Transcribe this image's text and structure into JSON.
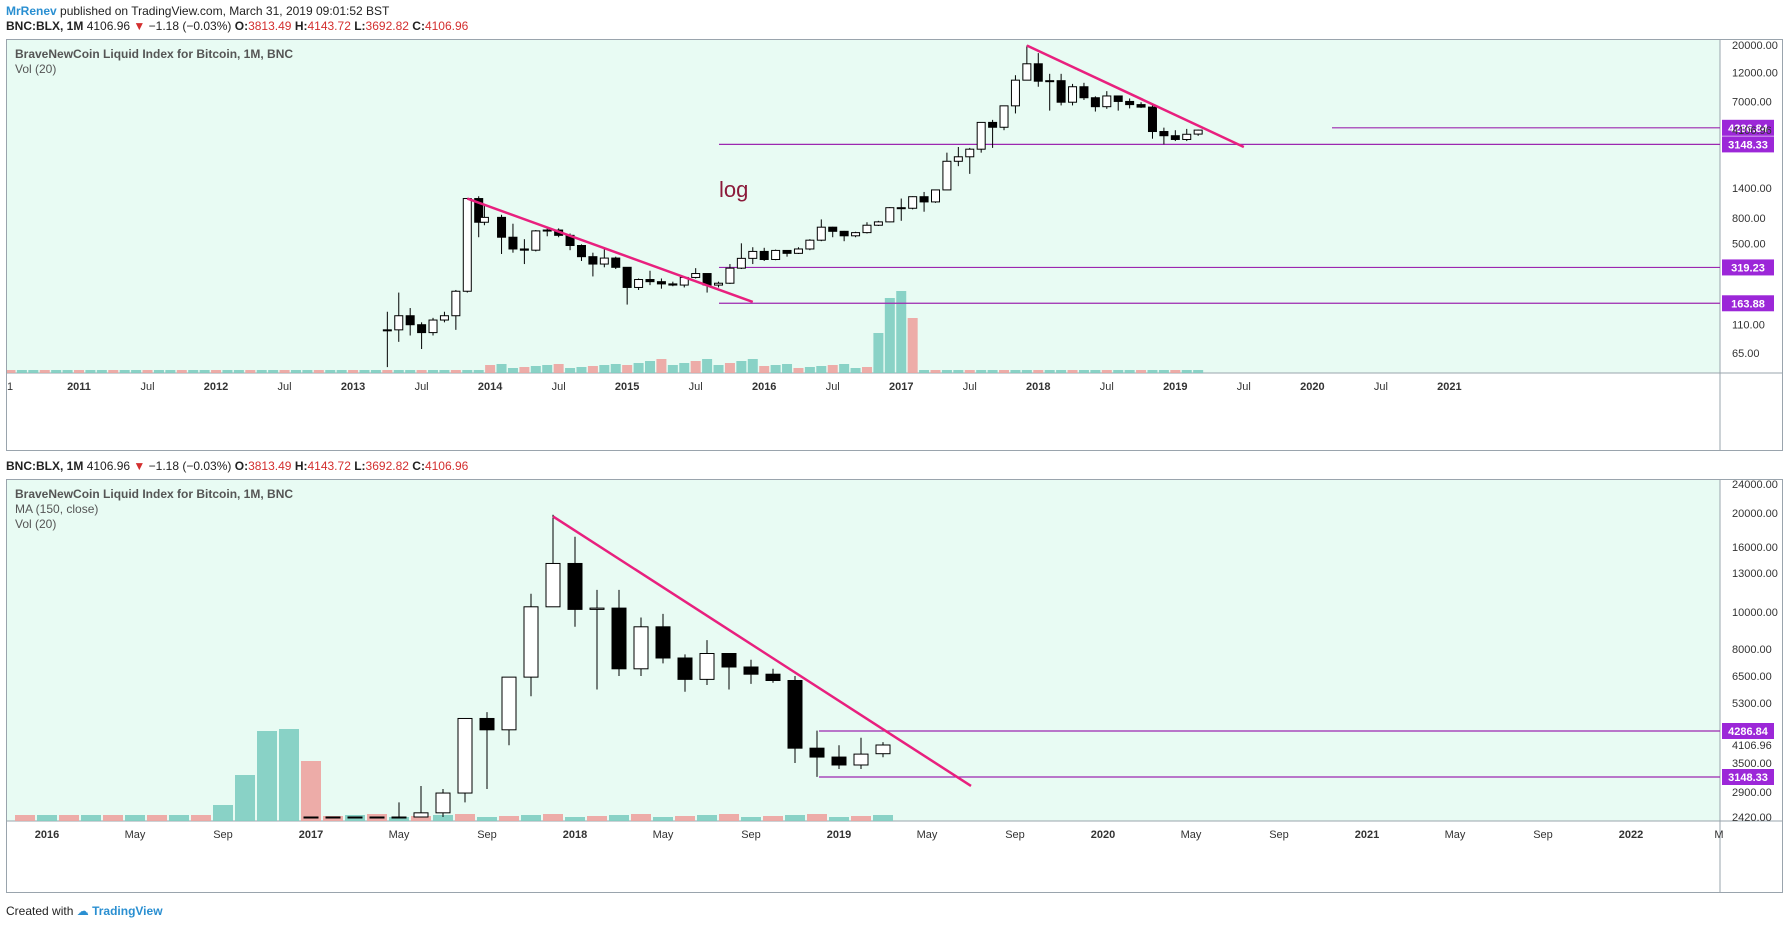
{
  "header": {
    "author": "MrRenev",
    "published": "published on TradingView.com, March 31, 2019 09:01:52 BST"
  },
  "quote": {
    "symbol": "BNC:BLX, 1M",
    "price": "4106.96",
    "change": "−1.18 (−0.03%)",
    "o_label": "O:",
    "o": "3813.49",
    "h_label": "H:",
    "h": "4143.72",
    "l_label": "L:",
    "l": "3692.82",
    "c_label": "C:",
    "c": "4106.96"
  },
  "footer": {
    "created_with": "Created with",
    "brand": "TradingView"
  },
  "colors": {
    "background": "#e8fbf3",
    "bull_candle": "#ffffff",
    "bear_candle": "#000000",
    "trendline": "#e8207e",
    "level_line": "#9c27b0",
    "vol_up": "#7ecdc1",
    "vol_down": "#eda3a0",
    "price_label_bg": "#9c27d8",
    "down_arrow": "#d32f2f"
  },
  "chart_data": [
    {
      "type": "candlestick",
      "title": "BraveNewCoin Liquid Index for Bitcoin, 1M, BNC",
      "studies": [
        "Vol (20)"
      ],
      "annotation": "log",
      "log_scale": true,
      "y_ticks": [
        "20000.00",
        "12000.00",
        "7000.00",
        "4286.84",
        "4106.96",
        "3148.33",
        "1400.00",
        "800.00",
        "500.00",
        "319.23",
        "163.88",
        "110.00",
        "65.00"
      ],
      "x_ticks": [
        "1",
        "2011",
        "Jul",
        "2012",
        "Jul",
        "2013",
        "Jul",
        "2014",
        "Jul",
        "2015",
        "Jul",
        "2016",
        "Jul",
        "2017",
        "Jul",
        "2018",
        "Jul",
        "2019",
        "Jul",
        "2020",
        "Jul",
        "2021"
      ],
      "levels": [
        {
          "value": 4286.84,
          "label": "4286.84",
          "highlight": true
        },
        {
          "value": 4106.96,
          "label": "4106.96",
          "highlight": false
        },
        {
          "value": 3148.33,
          "label": "3148.33",
          "highlight": true
        },
        {
          "value": 319.23,
          "label": "319.23",
          "highlight": true
        },
        {
          "value": 163.88,
          "label": "163.88",
          "highlight": true
        }
      ],
      "trendlines": [
        {
          "from": [
            "2013-11",
            1150
          ],
          "to": [
            "2015-12",
            168
          ]
        },
        {
          "from": [
            "2017-12",
            19800
          ],
          "to": [
            "2019-07",
            3000
          ]
        }
      ],
      "candles": [
        [
          "2013-04",
          100,
          140,
          50,
          100
        ],
        [
          "2013-05",
          100,
          200,
          80,
          130
        ],
        [
          "2013-06",
          130,
          150,
          90,
          110
        ],
        [
          "2013-07",
          110,
          115,
          70,
          95
        ],
        [
          "2013-08",
          95,
          125,
          90,
          120
        ],
        [
          "2013-09",
          120,
          140,
          115,
          130
        ],
        [
          "2013-10",
          130,
          210,
          100,
          205
        ],
        [
          "2013-11",
          205,
          1150,
          200,
          1150
        ],
        [
          "2013-12",
          1150,
          1200,
          560,
          740
        ],
        [
          "2013-12b",
          740,
          1000,
          700,
          810
        ],
        [
          "2014-02",
          810,
          850,
          410,
          560
        ],
        [
          "2014-03",
          560,
          720,
          420,
          450
        ],
        [
          "2014-04",
          450,
          540,
          340,
          440
        ],
        [
          "2014-05",
          440,
          640,
          430,
          630
        ],
        [
          "2014-06",
          630,
          670,
          570,
          640
        ],
        [
          "2014-07",
          640,
          660,
          560,
          580
        ],
        [
          "2014-08",
          580,
          600,
          440,
          480
        ],
        [
          "2014-09",
          480,
          490,
          360,
          390
        ],
        [
          "2014-10",
          390,
          420,
          270,
          340
        ],
        [
          "2014-11",
          340,
          460,
          320,
          380
        ],
        [
          "2014-12",
          380,
          390,
          310,
          320
        ],
        [
          "2015-01",
          320,
          320,
          160,
          220
        ],
        [
          "2015-02",
          220,
          260,
          210,
          255
        ],
        [
          "2015-03",
          255,
          300,
          230,
          245
        ],
        [
          "2015-04",
          245,
          260,
          215,
          235
        ],
        [
          "2015-05",
          235,
          245,
          225,
          230
        ],
        [
          "2015-06",
          230,
          270,
          220,
          265
        ],
        [
          "2015-07",
          265,
          315,
          260,
          285
        ],
        [
          "2015-08",
          285,
          285,
          200,
          230
        ],
        [
          "2015-09",
          230,
          245,
          220,
          238
        ],
        [
          "2015-10",
          238,
          340,
          235,
          315
        ],
        [
          "2015-11",
          315,
          500,
          310,
          378
        ],
        [
          "2015-12",
          378,
          465,
          340,
          430
        ],
        [
          "2016-01",
          430,
          460,
          360,
          370
        ],
        [
          "2016-02",
          370,
          445,
          365,
          438
        ],
        [
          "2016-03",
          438,
          440,
          390,
          415
        ],
        [
          "2016-04",
          415,
          465,
          410,
          450
        ],
        [
          "2016-05",
          450,
          540,
          440,
          530
        ],
        [
          "2016-06",
          530,
          780,
          520,
          675
        ],
        [
          "2016-07",
          675,
          680,
          560,
          625
        ],
        [
          "2016-08",
          625,
          630,
          520,
          575
        ],
        [
          "2016-09",
          575,
          620,
          560,
          610
        ],
        [
          "2016-10",
          610,
          740,
          600,
          700
        ],
        [
          "2016-11",
          700,
          760,
          690,
          745
        ],
        [
          "2016-12",
          745,
          980,
          740,
          970
        ],
        [
          "2017-01",
          970,
          1150,
          760,
          960
        ],
        [
          "2017-02",
          960,
          1200,
          940,
          1190
        ],
        [
          "2017-03",
          1190,
          1300,
          900,
          1080
        ],
        [
          "2017-04",
          1080,
          1350,
          1060,
          1350
        ],
        [
          "2017-05",
          1350,
          2700,
          1350,
          2300
        ],
        [
          "2017-06",
          2300,
          3000,
          2100,
          2500
        ],
        [
          "2017-07",
          2500,
          2950,
          1820,
          2880
        ],
        [
          "2017-08",
          2880,
          4750,
          2700,
          4740
        ],
        [
          "2017-09",
          4740,
          4970,
          2950,
          4330
        ],
        [
          "2017-10",
          4330,
          6450,
          4100,
          6450
        ],
        [
          "2017-11",
          6450,
          11400,
          5600,
          10400
        ],
        [
          "2017-12",
          10400,
          19800,
          10400,
          14100
        ],
        [
          "2018-01",
          14100,
          17200,
          9200,
          10200
        ],
        [
          "2018-02",
          10200,
          11700,
          5900,
          10300
        ],
        [
          "2018-03",
          10300,
          11700,
          6500,
          6900
        ],
        [
          "2018-04",
          6900,
          9700,
          6500,
          9200
        ],
        [
          "2018-05",
          9200,
          9900,
          7200,
          7500
        ],
        [
          "2018-06",
          7500,
          7700,
          5800,
          6350
        ],
        [
          "2018-07",
          6350,
          8480,
          6100,
          7750
        ],
        [
          "2018-08",
          7750,
          7750,
          5900,
          7000
        ],
        [
          "2018-09",
          7000,
          7400,
          6150,
          6600
        ],
        [
          "2018-10",
          6600,
          6900,
          6200,
          6300
        ],
        [
          "2018-11",
          6300,
          6500,
          3500,
          4000
        ],
        [
          "2018-12",
          4000,
          4300,
          3150,
          3700
        ],
        [
          "2019-01",
          3700,
          4100,
          3350,
          3450
        ],
        [
          "2019-02",
          3450,
          4200,
          3350,
          3800
        ],
        [
          "2019-03",
          3813.49,
          4143.72,
          3692.82,
          4106.96
        ]
      ]
    },
    {
      "type": "candlestick",
      "title": "BraveNewCoin Liquid Index for Bitcoin, 1M, BNC",
      "studies": [
        "MA (150, close)",
        "Vol (20)"
      ],
      "log_scale": false,
      "y_ticks": [
        "24000.00",
        "20000.00",
        "16000.00",
        "13000.00",
        "10000.00",
        "8000.00",
        "6500.00",
        "5300.00",
        "4286.84",
        "4106.96",
        "3500.00",
        "3148.33",
        "2900.00",
        "2420.00"
      ],
      "x_ticks": [
        "2016",
        "May",
        "Sep",
        "2017",
        "May",
        "Sep",
        "2018",
        "May",
        "Sep",
        "2019",
        "May",
        "Sep",
        "2020",
        "May",
        "Sep",
        "2021",
        "May",
        "Sep",
        "2022",
        "M"
      ],
      "levels": [
        {
          "value": 4286.84,
          "label": "4286.84",
          "highlight": true
        },
        {
          "value": 4106.96,
          "label": "4106.96",
          "highlight": false
        },
        {
          "value": 3148.33,
          "label": "3148.33",
          "highlight": true
        }
      ],
      "trendlines": [
        {
          "from": [
            "2017-12",
            19600
          ],
          "to": [
            "2019-07",
            3000
          ]
        }
      ]
    }
  ]
}
